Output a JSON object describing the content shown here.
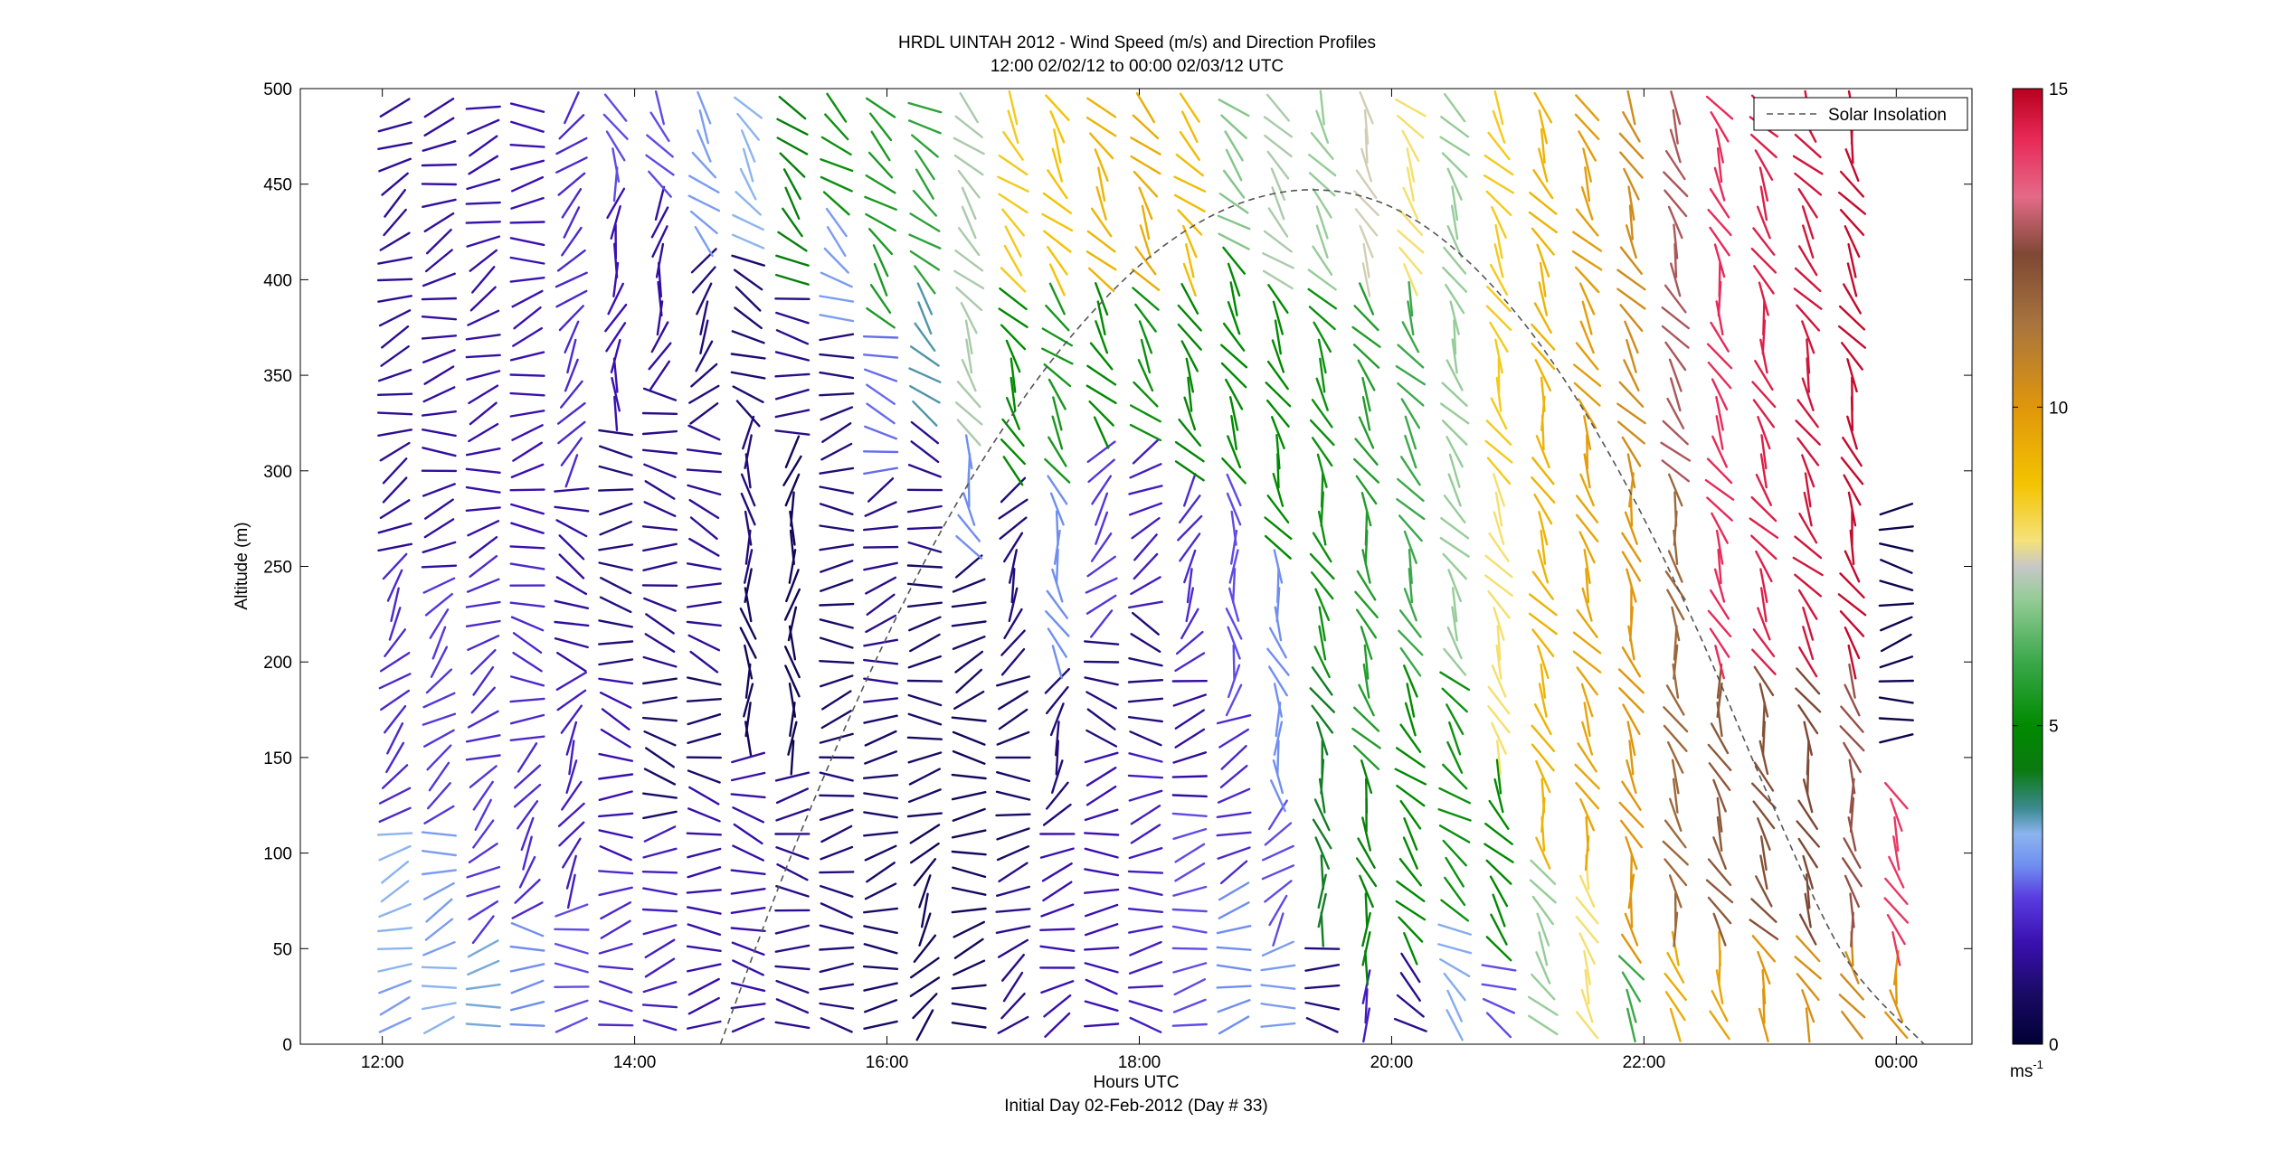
{
  "chart_data": {
    "type": "wind-barb-profile",
    "title_line1": "HRDL UINTAH 2012 - Wind Speed (m/s) and Direction Profiles",
    "title_line2": "12:00 02/02/12 to 00:00 02/03/12  UTC",
    "xlabel": "Hours UTC",
    "xlabel_sub": "Initial Day 02-Feb-2012 (Day # 33)",
    "ylabel": "Altitude (m)",
    "xlim_hours": [
      11.35,
      24.6
    ],
    "ylim": [
      0,
      500
    ],
    "x_tick_labels": [
      "12:00",
      "14:00",
      "16:00",
      "18:00",
      "20:00",
      "22:00",
      "00:00"
    ],
    "x_tick_hours": [
      12,
      14,
      16,
      18,
      20,
      22,
      24
    ],
    "y_ticks": [
      0,
      50,
      100,
      150,
      200,
      250,
      300,
      350,
      400,
      450,
      500
    ],
    "legend": {
      "label": "Solar Insolation",
      "placement": "top-right",
      "line_color": "#555555"
    },
    "colorbar": {
      "range": [
        0,
        15
      ],
      "ticks": [
        0,
        5,
        10,
        15
      ],
      "unit_label": "ms",
      "unit_exp": "-1",
      "stops": [
        {
          "v": 0.0,
          "c": "#000033"
        },
        {
          "v": 0.8,
          "c": "#1a0a66"
        },
        {
          "v": 1.6,
          "c": "#3a10b0"
        },
        {
          "v": 2.3,
          "c": "#5a3ce0"
        },
        {
          "v": 2.8,
          "c": "#6f8ef0"
        },
        {
          "v": 3.3,
          "c": "#8cb4ef"
        },
        {
          "v": 3.7,
          "c": "#3c8a90"
        },
        {
          "v": 4.3,
          "c": "#0a7a10"
        },
        {
          "v": 5.0,
          "c": "#008a00"
        },
        {
          "v": 6.0,
          "c": "#3aa84a"
        },
        {
          "v": 7.0,
          "c": "#96cc98"
        },
        {
          "v": 7.5,
          "c": "#c7c7c7"
        },
        {
          "v": 7.9,
          "c": "#f5e27a"
        },
        {
          "v": 8.8,
          "c": "#f4c300"
        },
        {
          "v": 10.0,
          "c": "#e0960c"
        },
        {
          "v": 11.3,
          "c": "#a8743e"
        },
        {
          "v": 12.4,
          "c": "#7e4834"
        },
        {
          "v": 13.3,
          "c": "#e46a88"
        },
        {
          "v": 14.2,
          "c": "#e82a58"
        },
        {
          "v": 15.0,
          "c": "#b8001e"
        }
      ]
    },
    "solar_insolation": {
      "x_hours": [
        14.68,
        15.2,
        15.8,
        16.4,
        17.0,
        17.6,
        18.2,
        18.8,
        19.4,
        20.0,
        20.6,
        21.2,
        21.8,
        22.4,
        23.0,
        23.6,
        24.22
      ],
      "y_m": [
        0,
        92,
        185,
        265,
        330,
        381,
        418,
        440,
        447,
        438,
        410,
        364,
        300,
        220,
        128,
        45,
        0
      ]
    },
    "profiles": [
      {
        "t": 12.1,
        "bands": [
          [
            0,
            40,
            3.0,
            95
          ],
          [
            40,
            120,
            3.3,
            105
          ],
          [
            120,
            260,
            2.0,
            140
          ],
          [
            260,
            500,
            1.3,
            115
          ]
        ]
      },
      {
        "t": 12.45,
        "bands": [
          [
            0,
            50,
            3.3,
            100
          ],
          [
            50,
            120,
            3.0,
            110
          ],
          [
            120,
            250,
            2.2,
            130
          ],
          [
            250,
            500,
            1.4,
            105
          ]
        ]
      },
      {
        "t": 12.8,
        "bands": [
          [
            0,
            60,
            3.4,
            100
          ],
          [
            60,
            150,
            2.2,
            135
          ],
          [
            150,
            260,
            2.0,
            115
          ],
          [
            260,
            500,
            1.5,
            110
          ]
        ]
      },
      {
        "t": 13.15,
        "bands": [
          [
            0,
            70,
            2.8,
            95
          ],
          [
            70,
            160,
            2.0,
            145
          ],
          [
            160,
            260,
            2.0,
            75
          ],
          [
            260,
            500,
            1.6,
            100
          ]
        ]
      },
      {
        "t": 13.5,
        "bands": [
          [
            0,
            80,
            2.4,
            100
          ],
          [
            80,
            200,
            1.8,
            145
          ],
          [
            200,
            300,
            1.4,
            70
          ],
          [
            300,
            500,
            2.0,
            140
          ]
        ]
      },
      {
        "t": 13.85,
        "bands": [
          [
            0,
            100,
            2.0,
            95
          ],
          [
            100,
            200,
            1.6,
            80
          ],
          [
            200,
            330,
            1.0,
            85
          ],
          [
            330,
            450,
            1.6,
            170
          ],
          [
            450,
            500,
            2.4,
            195
          ]
        ]
      },
      {
        "t": 14.2,
        "bands": [
          [
            0,
            120,
            1.8,
            95
          ],
          [
            120,
            200,
            0.8,
            85
          ],
          [
            200,
            350,
            1.2,
            75
          ],
          [
            350,
            450,
            1.4,
            170
          ],
          [
            450,
            500,
            2.4,
            205
          ]
        ]
      },
      {
        "t": 14.55,
        "bands": [
          [
            0,
            140,
            1.5,
            90
          ],
          [
            140,
            200,
            0.8,
            90
          ],
          [
            200,
            330,
            1.3,
            70
          ],
          [
            330,
            420,
            1.0,
            150
          ],
          [
            420,
            500,
            3.0,
            215
          ]
        ]
      },
      {
        "t": 14.9,
        "bands": [
          [
            0,
            160,
            1.5,
            85
          ],
          [
            160,
            250,
            0.6,
            180
          ],
          [
            250,
            330,
            1.0,
            190
          ],
          [
            330,
            420,
            0.9,
            60
          ],
          [
            420,
            500,
            3.3,
            220
          ]
        ]
      },
      {
        "t": 15.25,
        "bands": [
          [
            0,
            150,
            1.2,
            90
          ],
          [
            150,
            250,
            0.5,
            180
          ],
          [
            250,
            320,
            0.6,
            175
          ],
          [
            320,
            400,
            1.2,
            80
          ],
          [
            400,
            500,
            4.5,
            230
          ]
        ]
      },
      {
        "t": 15.6,
        "bands": [
          [
            0,
            150,
            1.0,
            90
          ],
          [
            150,
            250,
            0.8,
            100
          ],
          [
            250,
            380,
            1.0,
            95
          ],
          [
            380,
            440,
            3.0,
            240
          ],
          [
            440,
            500,
            5.2,
            235
          ]
        ]
      },
      {
        "t": 15.95,
        "bands": [
          [
            0,
            180,
            0.8,
            95
          ],
          [
            180,
            300,
            1.2,
            110
          ],
          [
            300,
            380,
            2.6,
            70
          ],
          [
            380,
            500,
            5.5,
            230
          ]
        ]
      },
      {
        "t": 16.3,
        "bands": [
          [
            0,
            120,
            0.6,
            140
          ],
          [
            120,
            260,
            0.8,
            100
          ],
          [
            260,
            330,
            1.2,
            70
          ],
          [
            330,
            400,
            3.6,
            230
          ],
          [
            400,
            500,
            5.8,
            225
          ]
        ]
      },
      {
        "t": 16.65,
        "bands": [
          [
            0,
            180,
            0.6,
            95
          ],
          [
            180,
            260,
            0.8,
            110
          ],
          [
            260,
            320,
            2.8,
            200
          ],
          [
            320,
            500,
            7.2,
            215
          ]
        ]
      },
      {
        "t": 17.0,
        "bands": [
          [
            0,
            100,
            1.2,
            120
          ],
          [
            100,
            200,
            0.8,
            100
          ],
          [
            200,
            300,
            1.0,
            150
          ],
          [
            300,
            400,
            5.0,
            210
          ],
          [
            400,
            500,
            8.6,
            220
          ]
        ]
      },
      {
        "t": 17.35,
        "bands": [
          [
            0,
            120,
            1.6,
            110
          ],
          [
            120,
            200,
            1.0,
            150
          ],
          [
            200,
            300,
            2.8,
            200
          ],
          [
            300,
            400,
            5.4,
            215
          ],
          [
            400,
            500,
            8.8,
            220
          ]
        ]
      },
      {
        "t": 17.7,
        "bands": [
          [
            0,
            160,
            1.6,
            95
          ],
          [
            160,
            220,
            1.0,
            70
          ],
          [
            220,
            320,
            2.2,
            145
          ],
          [
            320,
            400,
            5.0,
            210
          ],
          [
            400,
            500,
            9.2,
            220
          ]
        ]
      },
      {
        "t": 18.05,
        "bands": [
          [
            0,
            160,
            1.8,
            95
          ],
          [
            160,
            230,
            1.0,
            80
          ],
          [
            230,
            320,
            1.8,
            120
          ],
          [
            320,
            400,
            5.2,
            215
          ],
          [
            400,
            500,
            9.4,
            220
          ]
        ]
      },
      {
        "t": 18.4,
        "bands": [
          [
            0,
            130,
            2.4,
            95
          ],
          [
            130,
            200,
            1.4,
            110
          ],
          [
            200,
            300,
            2.0,
            150
          ],
          [
            300,
            400,
            4.8,
            210
          ],
          [
            400,
            500,
            9.0,
            220
          ]
        ]
      },
      {
        "t": 18.75,
        "bands": [
          [
            0,
            90,
            2.8,
            95
          ],
          [
            90,
            180,
            2.0,
            120
          ],
          [
            180,
            300,
            2.4,
            180
          ],
          [
            300,
            420,
            5.0,
            215
          ],
          [
            420,
            500,
            6.8,
            220
          ]
        ]
      },
      {
        "t": 19.1,
        "bands": [
          [
            0,
            60,
            3.0,
            95
          ],
          [
            60,
            130,
            2.4,
            140
          ],
          [
            130,
            260,
            2.8,
            190
          ],
          [
            260,
            400,
            5.0,
            210
          ],
          [
            400,
            500,
            7.2,
            215
          ]
        ]
      },
      {
        "t": 19.45,
        "bands": [
          [
            0,
            60,
            1.0,
            80
          ],
          [
            60,
            200,
            4.2,
            195
          ],
          [
            200,
            400,
            5.2,
            205
          ],
          [
            400,
            500,
            7.0,
            215
          ]
        ]
      },
      {
        "t": 19.8,
        "bands": [
          [
            0,
            40,
            1.8,
            160
          ],
          [
            40,
            150,
            4.6,
            195
          ],
          [
            150,
            400,
            5.6,
            205
          ],
          [
            400,
            500,
            7.6,
            210
          ]
        ]
      },
      {
        "t": 20.15,
        "bands": [
          [
            0,
            50,
            1.2,
            240
          ],
          [
            50,
            200,
            5.0,
            215
          ],
          [
            200,
            400,
            6.0,
            210
          ],
          [
            400,
            500,
            8.0,
            215
          ]
        ]
      },
      {
        "t": 20.5,
        "bands": [
          [
            0,
            70,
            3.2,
            230
          ],
          [
            70,
            200,
            5.2,
            225
          ],
          [
            200,
            500,
            7.0,
            210
          ]
        ]
      },
      {
        "t": 20.85,
        "bands": [
          [
            0,
            50,
            2.4,
            235
          ],
          [
            50,
            150,
            5.0,
            215
          ],
          [
            150,
            300,
            8.0,
            205
          ],
          [
            300,
            500,
            8.6,
            210
          ]
        ]
      },
      {
        "t": 21.2,
        "bands": [
          [
            0,
            100,
            7.0,
            210
          ],
          [
            100,
            500,
            9.2,
            205
          ]
        ]
      },
      {
        "t": 21.55,
        "bands": [
          [
            0,
            100,
            8.0,
            205
          ],
          [
            100,
            300,
            9.6,
            205
          ],
          [
            300,
            500,
            9.8,
            210
          ]
        ]
      },
      {
        "t": 21.9,
        "bands": [
          [
            0,
            50,
            6.0,
            215
          ],
          [
            50,
            300,
            10.0,
            200
          ],
          [
            300,
            500,
            10.4,
            210
          ]
        ]
      },
      {
        "t": 22.25,
        "bands": [
          [
            0,
            60,
            9.4,
            205
          ],
          [
            60,
            300,
            11.6,
            200
          ],
          [
            300,
            500,
            12.8,
            210
          ]
        ]
      },
      {
        "t": 22.6,
        "bands": [
          [
            0,
            60,
            9.6,
            200
          ],
          [
            60,
            200,
            12.0,
            200
          ],
          [
            200,
            500,
            14.2,
            205
          ]
        ]
      },
      {
        "t": 22.95,
        "bands": [
          [
            0,
            60,
            10.0,
            200
          ],
          [
            60,
            200,
            12.2,
            205
          ],
          [
            200,
            500,
            14.4,
            205
          ]
        ]
      },
      {
        "t": 23.3,
        "bands": [
          [
            0,
            60,
            10.2,
            200
          ],
          [
            60,
            200,
            12.4,
            205
          ],
          [
            200,
            500,
            14.6,
            210
          ]
        ]
      },
      {
        "t": 23.65,
        "bands": [
          [
            0,
            60,
            10.4,
            200
          ],
          [
            60,
            200,
            12.6,
            200
          ],
          [
            200,
            500,
            14.8,
            205
          ]
        ]
      },
      {
        "t": 24.0,
        "bands": [
          [
            0,
            50,
            10.0,
            200
          ],
          [
            50,
            140,
            14.0,
            210
          ],
          [
            160,
            290,
            0.4,
            95
          ]
        ]
      }
    ]
  }
}
